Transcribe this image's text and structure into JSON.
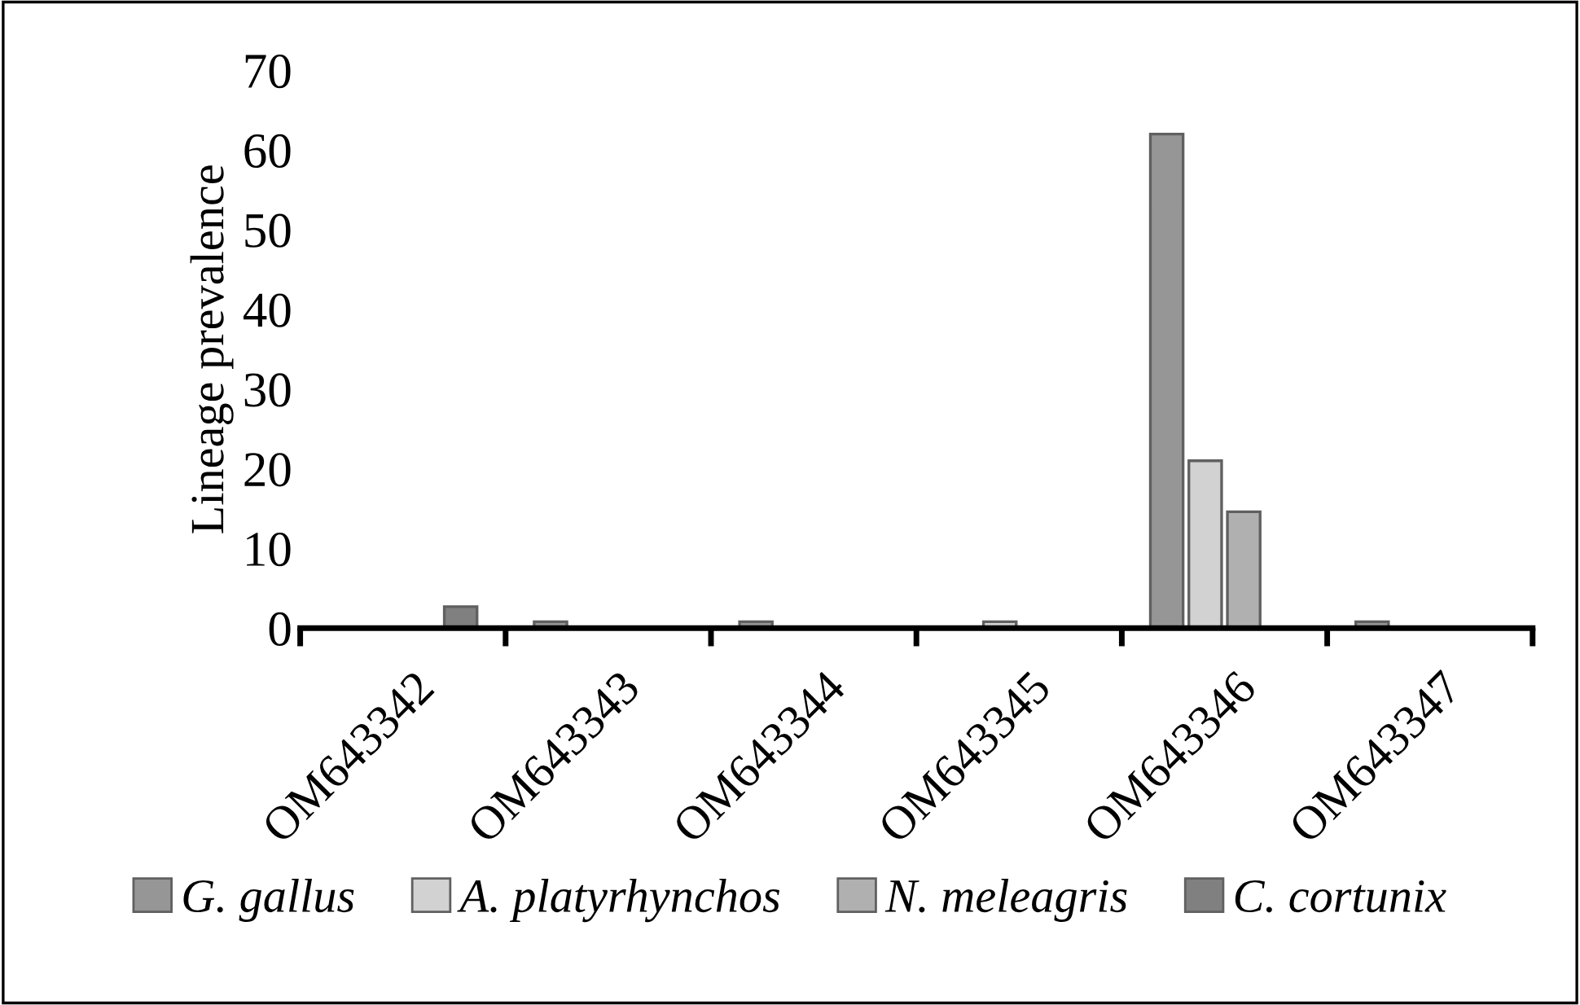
{
  "chart_data": {
    "type": "bar",
    "ylabel": "Lineage prevalence",
    "categories": [
      "OM643342",
      "OM643343",
      "OM643344",
      "OM643345",
      "OM643346",
      "OM643347"
    ],
    "series": [
      {
        "name": "G. gallus",
        "color": "#969696",
        "values": [
          0,
          0.8,
          0.8,
          0,
          62,
          0.8
        ]
      },
      {
        "name": "A. platyrhynchos",
        "color": "#d2d2d2",
        "values": [
          0,
          0,
          0,
          0.8,
          21,
          0
        ]
      },
      {
        "name": "N. meleagris",
        "color": "#b0b0b0",
        "values": [
          0,
          0,
          0,
          0,
          14.6,
          0
        ]
      },
      {
        "name": "C. cortunix",
        "color": "#808080",
        "values": [
          2.7,
          0,
          0,
          0,
          0,
          0
        ]
      }
    ],
    "ylim": [
      0,
      70
    ],
    "yticks": [
      0,
      10,
      20,
      30,
      40,
      50,
      60,
      70
    ],
    "grid": false,
    "legend": "bottom"
  }
}
